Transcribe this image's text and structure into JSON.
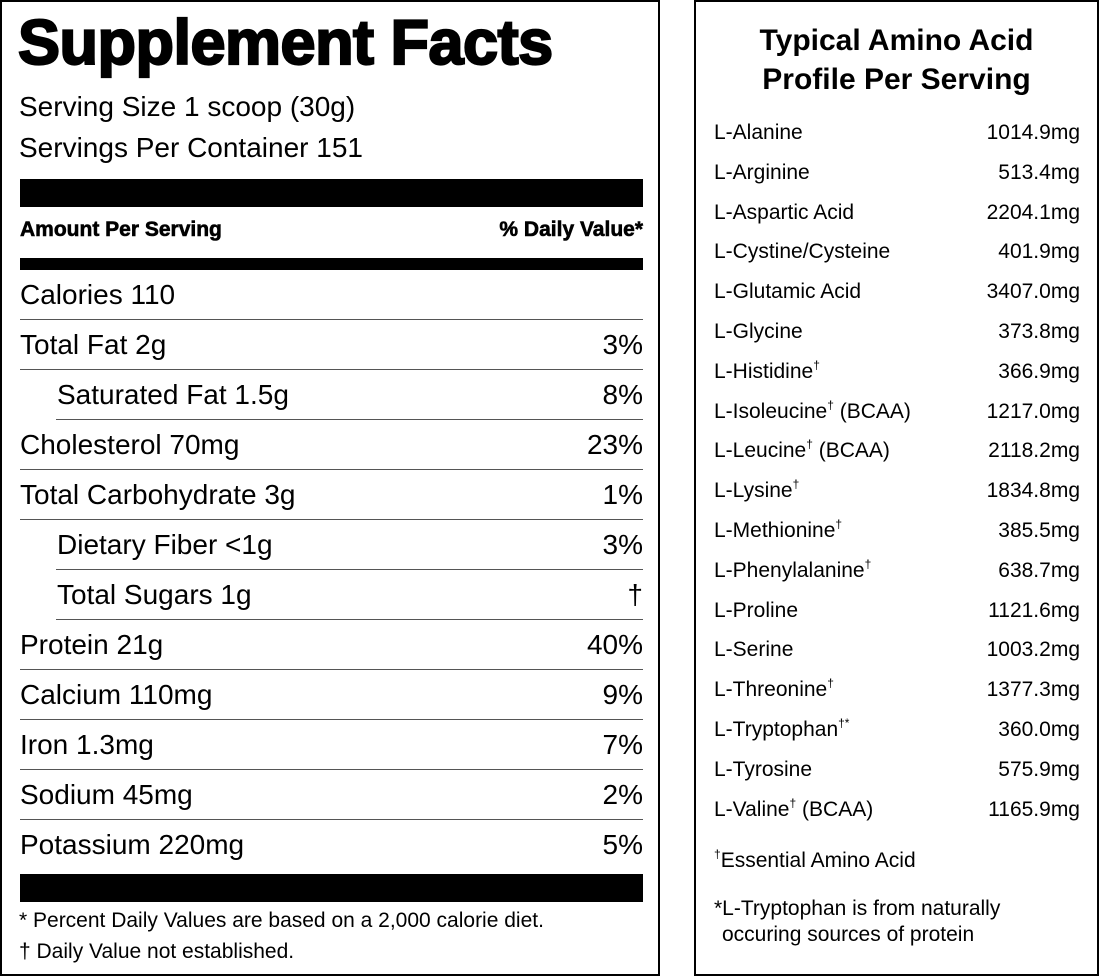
{
  "supplement_facts": {
    "title": "Supplement Facts",
    "serving_size": "Serving Size 1 scoop (30g)",
    "servings_per_container": "Servings Per Container 151",
    "header_left": "Amount Per Serving",
    "header_right": "% Daily Value*",
    "rows": [
      {
        "name": "Calories 110",
        "dv": ""
      },
      {
        "name": "Total Fat 2g",
        "dv": "3%"
      },
      {
        "name": "Saturated Fat 1.5g",
        "dv": "8%"
      },
      {
        "name": "Cholesterol 70mg",
        "dv": "23%"
      },
      {
        "name": "Total Carbohydrate 3g",
        "dv": "1%"
      },
      {
        "name": "Dietary Fiber <1g",
        "dv": "3%"
      },
      {
        "name": "Total Sugars 1g",
        "dv": "†"
      },
      {
        "name": "Protein 21g",
        "dv": "40%"
      },
      {
        "name": "Calcium 110mg",
        "dv": "9%"
      },
      {
        "name": "Iron 1.3mg",
        "dv": "7%"
      },
      {
        "name": "Sodium 45mg",
        "dv": "2%"
      },
      {
        "name": "Potassium 220mg",
        "dv": "5%"
      }
    ],
    "footnote_1": "* Percent Daily Values are based on a 2,000 calorie diet.",
    "footnote_2": "† Daily Value not established."
  },
  "amino_profile": {
    "title_line_1": "Typical Amino Acid",
    "title_line_2": "Profile Per Serving",
    "items": [
      {
        "name": "L-Alanine",
        "mark": "",
        "suffix": "",
        "value": "1014.9mg"
      },
      {
        "name": "L-Arginine",
        "mark": "",
        "suffix": "",
        "value": "513.4mg"
      },
      {
        "name": "L-Aspartic Acid",
        "mark": "",
        "suffix": "",
        "value": "2204.1mg"
      },
      {
        "name": "L-Cystine/Cysteine",
        "mark": "",
        "suffix": "",
        "value": "401.9mg"
      },
      {
        "name": "L-Glutamic Acid",
        "mark": "",
        "suffix": "",
        "value": "3407.0mg"
      },
      {
        "name": "L-Glycine",
        "mark": "",
        "suffix": "",
        "value": "373.8mg"
      },
      {
        "name": "L-Histidine",
        "mark": "†",
        "suffix": "",
        "value": "366.9mg"
      },
      {
        "name": "L-Isoleucine",
        "mark": "†",
        "suffix": " (BCAA)",
        "value": "1217.0mg"
      },
      {
        "name": "L-Leucine",
        "mark": "†",
        "suffix": " (BCAA)",
        "value": "2118.2mg"
      },
      {
        "name": "L-Lysine",
        "mark": "†",
        "suffix": "",
        "value": "1834.8mg"
      },
      {
        "name": "L-Methionine",
        "mark": "†",
        "suffix": "",
        "value": "385.5mg"
      },
      {
        "name": "L-Phenylalanine",
        "mark": "†",
        "suffix": "",
        "value": "638.7mg"
      },
      {
        "name": "L-Proline",
        "mark": "",
        "suffix": "",
        "value": "1121.6mg"
      },
      {
        "name": "L-Serine",
        "mark": "",
        "suffix": "",
        "value": "1003.2mg"
      },
      {
        "name": "L-Threonine",
        "mark": "†",
        "suffix": "",
        "value": "1377.3mg"
      },
      {
        "name": "L-Tryptophan",
        "mark": "†*",
        "suffix": "",
        "value": "360.0mg"
      },
      {
        "name": "L-Tyrosine",
        "mark": "",
        "suffix": "",
        "value": "575.9mg"
      },
      {
        "name": "L-Valine",
        "mark": "†",
        "suffix": " (BCAA)",
        "value": "1165.9mg"
      }
    ],
    "note_essential_mark": "†",
    "note_essential": "Essential Amino Acid",
    "note_tryptophan_line_1": "*L-Tryptophan is from naturally",
    "note_tryptophan_line_2": "occuring sources of protein"
  }
}
